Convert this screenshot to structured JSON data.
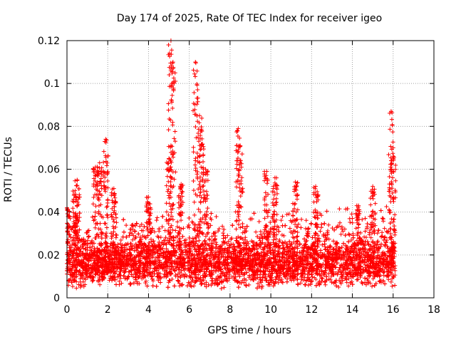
{
  "chart_data": {
    "type": "scatter",
    "title": "Day 174 of 2025, Rate Of TEC Index for receiver igeo",
    "xlabel": "GPS time / hours",
    "ylabel": "ROTI / TECUs",
    "xlim": [
      0,
      18
    ],
    "ylim": [
      0,
      0.12
    ],
    "x_ticks": [
      "0",
      "2",
      "4",
      "6",
      "8",
      "10",
      "12",
      "14",
      "16",
      "18"
    ],
    "y_ticks": [
      "0",
      "0.02",
      "0.04",
      "0.06",
      "0.08",
      "0.1",
      "0.12"
    ],
    "grid": true,
    "series": [
      {
        "name": "ROTI",
        "marker": "+",
        "color": "#ff0000",
        "x_range": [
          0,
          16.1
        ],
        "baseline": 0.016,
        "peaks": [
          {
            "x": 0.0,
            "y": 0.042
          },
          {
            "x": 0.4,
            "y": 0.05
          },
          {
            "x": 0.5,
            "y": 0.055
          },
          {
            "x": 1.4,
            "y": 0.061
          },
          {
            "x": 1.6,
            "y": 0.063
          },
          {
            "x": 1.9,
            "y": 0.074
          },
          {
            "x": 2.3,
            "y": 0.051
          },
          {
            "x": 4.0,
            "y": 0.047
          },
          {
            "x": 5.0,
            "y": 0.065
          },
          {
            "x": 5.1,
            "y": 0.12
          },
          {
            "x": 5.2,
            "y": 0.11
          },
          {
            "x": 5.6,
            "y": 0.053
          },
          {
            "x": 6.3,
            "y": 0.11
          },
          {
            "x": 6.5,
            "y": 0.085
          },
          {
            "x": 6.6,
            "y": 0.078
          },
          {
            "x": 6.8,
            "y": 0.06
          },
          {
            "x": 8.4,
            "y": 0.079
          },
          {
            "x": 8.5,
            "y": 0.071
          },
          {
            "x": 9.8,
            "y": 0.059
          },
          {
            "x": 10.2,
            "y": 0.056
          },
          {
            "x": 11.2,
            "y": 0.054
          },
          {
            "x": 12.2,
            "y": 0.052
          },
          {
            "x": 14.3,
            "y": 0.043
          },
          {
            "x": 15.0,
            "y": 0.052
          },
          {
            "x": 15.9,
            "y": 0.087
          },
          {
            "x": 16.0,
            "y": 0.07
          }
        ]
      }
    ]
  }
}
